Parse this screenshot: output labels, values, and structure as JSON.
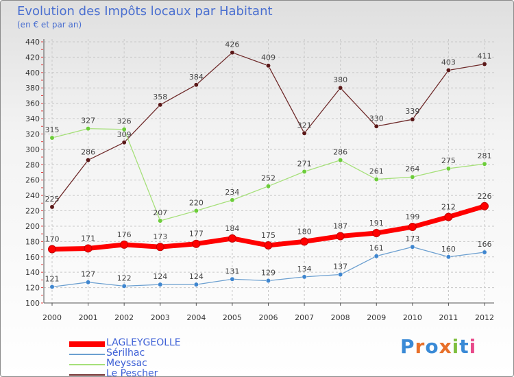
{
  "title": "Evolution des Impôts locaux par Habitant",
  "subtitle": "(en € et par an)",
  "logo": {
    "text": "Proxiti",
    "colors": [
      "#3a8ad6",
      "#e8702a",
      "#3a8ad6",
      "#e8702a",
      "#7fbf3f",
      "#3a8ad6",
      "#e84a8a"
    ]
  },
  "chart_data": {
    "type": "line",
    "x": [
      "2000",
      "2001",
      "2002",
      "2003",
      "2004",
      "2005",
      "2006",
      "2007",
      "2008",
      "2009",
      "2010",
      "2011",
      "2012"
    ],
    "ylim": [
      100,
      440
    ],
    "yticks": [
      "100",
      "120",
      "140",
      "160",
      "180",
      "200",
      "220",
      "240",
      "260",
      "280",
      "300",
      "320",
      "340",
      "360",
      "380",
      "400",
      "420",
      "440"
    ],
    "grid": true,
    "legend_position": "bottom-left",
    "series": [
      {
        "name": "LAGLEYGEOLLE",
        "color": "#ff0000",
        "marker": "#ff0000",
        "values": [
          170,
          171,
          176,
          173,
          177,
          184,
          175,
          180,
          187,
          191,
          199,
          212,
          226
        ]
      },
      {
        "name": "Sérilhac",
        "color": "#6b9fd0",
        "marker": "#3f86cf",
        "values": [
          121,
          127,
          122,
          124,
          124,
          131,
          129,
          134,
          137,
          161,
          173,
          160,
          166
        ]
      },
      {
        "name": "Meyssac",
        "color": "#a6e07a",
        "marker": "#6ccc3a",
        "values": [
          315,
          327,
          326,
          207,
          220,
          234,
          252,
          271,
          286,
          261,
          264,
          275,
          281
        ]
      },
      {
        "name": "Le Pescher",
        "color": "#6e2a2a",
        "marker": "#5a1818",
        "values": [
          225,
          286,
          309,
          358,
          384,
          426,
          409,
          321,
          380,
          330,
          339,
          403,
          411
        ]
      }
    ]
  }
}
